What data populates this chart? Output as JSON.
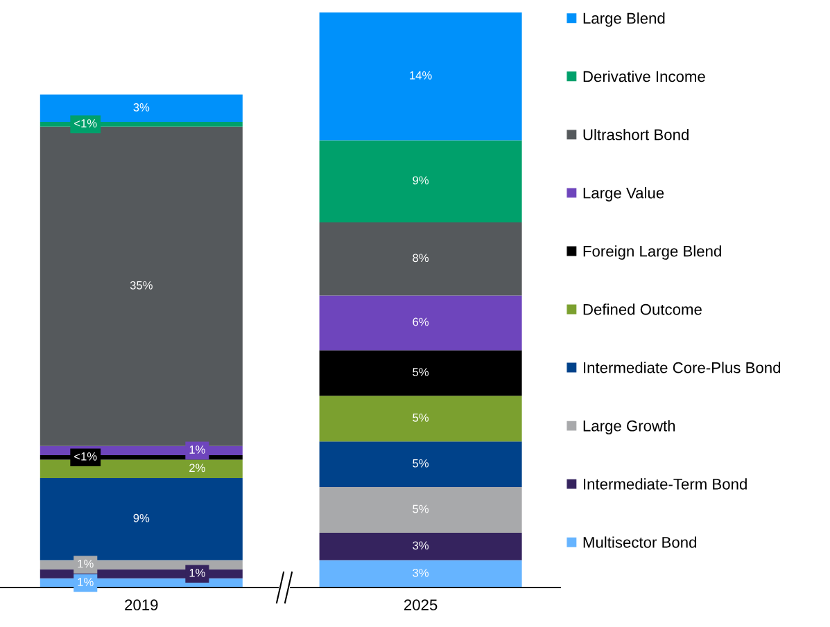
{
  "chart_data": {
    "type": "bar",
    "stacked": true,
    "categories": [
      "2019",
      "2025"
    ],
    "tick_labels": "x",
    "series": [
      {
        "name": "Multisector Bond",
        "color": "#66b4ff",
        "values": [
          1,
          3
        ],
        "value_labels": [
          "1%",
          "3%"
        ]
      },
      {
        "name": "Intermediate-Term Bond",
        "color": "#35235e",
        "values": [
          1,
          3
        ],
        "value_labels": [
          "1%",
          "3%"
        ]
      },
      {
        "name": "Large Growth",
        "color": "#a8a9ab",
        "values": [
          1,
          5
        ],
        "value_labels": [
          "1%",
          "5%"
        ]
      },
      {
        "name": "Intermediate Core-Plus Bond",
        "color": "#00428a",
        "values": [
          9,
          5
        ],
        "value_labels": [
          "9%",
          "5%"
        ]
      },
      {
        "name": "Defined Outcome",
        "color": "#7ba02f",
        "values": [
          2,
          5
        ],
        "value_labels": [
          "2%",
          "5%"
        ]
      },
      {
        "name": "Foreign Large Blend",
        "color": "#000000",
        "values": [
          0.5,
          5
        ],
        "value_labels": [
          "<1%",
          "5%"
        ]
      },
      {
        "name": "Large Value",
        "color": "#6e45bc",
        "values": [
          1,
          6
        ],
        "value_labels": [
          "1%",
          "6%"
        ]
      },
      {
        "name": "Ultrashort Bond",
        "color": "#55595c",
        "values": [
          35,
          8
        ],
        "value_labels": [
          "35%",
          "8%"
        ]
      },
      {
        "name": "Derivative Income",
        "color": "#00a06b",
        "values": [
          0.5,
          9
        ],
        "value_labels": [
          "<1%",
          "9%"
        ]
      },
      {
        "name": "Large Blend",
        "color": "#0091fa",
        "values": [
          3,
          14
        ],
        "value_labels": [
          "3%",
          "14%"
        ]
      }
    ],
    "legend": "right",
    "marker": "square"
  }
}
